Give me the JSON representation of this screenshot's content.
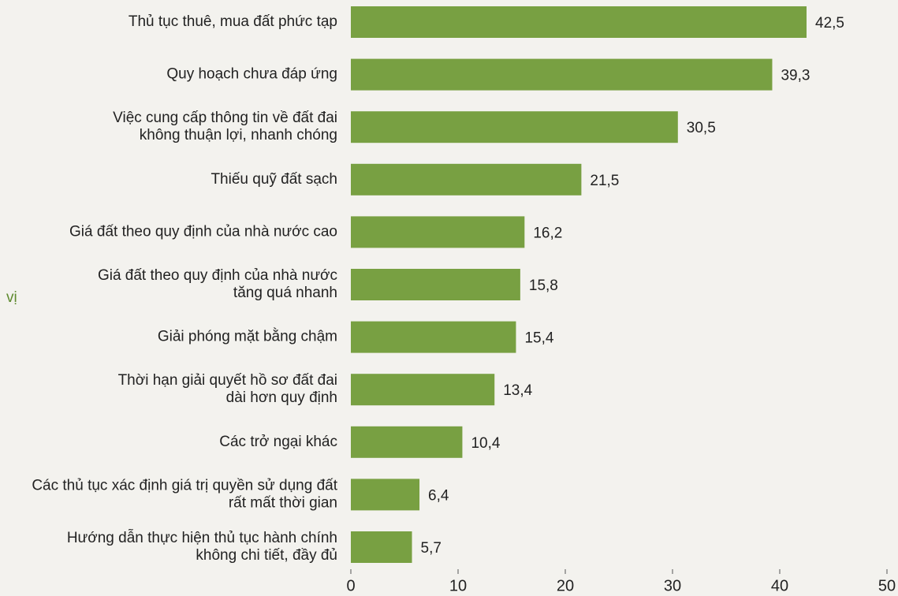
{
  "chart_data": {
    "type": "bar",
    "orientation": "horizontal",
    "categories": [
      [
        "Thủ tục thuê, mua đất phức tạp"
      ],
      [
        "Quy hoạch chưa đáp ứng"
      ],
      [
        "Việc cung cấp thông tin về đất đai",
        "không thuận lợi, nhanh chóng"
      ],
      [
        "Thiếu quỹ đất sạch"
      ],
      [
        "Giá đất theo quy định của nhà nước cao"
      ],
      [
        "Giá đất theo quy định của nhà nước",
        "tăng quá nhanh"
      ],
      [
        "Giải phóng mặt bằng chậm"
      ],
      [
        "Thời hạn giải quyết hồ sơ đất đai",
        "dài hơn quy định"
      ],
      [
        "Các trở ngại khác"
      ],
      [
        "Các thủ tục xác định giá trị quyền sử dụng đất",
        "rất mất thời gian"
      ],
      [
        "Hướng dẫn thực hiện thủ tục hành chính",
        "không chi tiết, đầy đủ"
      ]
    ],
    "values": [
      42.5,
      39.3,
      30.5,
      21.5,
      16.2,
      15.8,
      15.4,
      13.4,
      10.4,
      6.4,
      5.7
    ],
    "value_labels": [
      "42,5",
      "39,3",
      "30,5",
      "21,5",
      "16,2",
      "15,8",
      "15,4",
      "13,4",
      "10,4",
      "6,4",
      "5,7"
    ],
    "color": "#78a042",
    "xlim": [
      0,
      50
    ],
    "xticks": [
      0,
      10,
      20,
      30,
      40,
      50
    ],
    "annotation": "vị",
    "annotation_color": "#5e8a2e"
  }
}
